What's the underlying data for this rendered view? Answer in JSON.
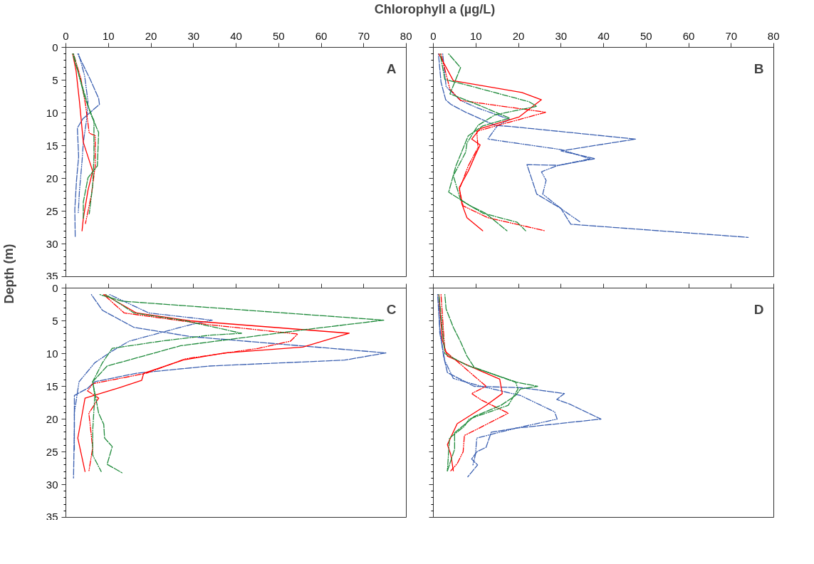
{
  "chart_data": [
    {
      "type": "line",
      "xlabel": "Chlorophyll a (µg/L)",
      "ylabel": "Depth (m)",
      "annotations": [
        "A"
      ],
      "xlim": [
        0,
        80
      ],
      "xticks": [
        0,
        10,
        20,
        30,
        40,
        50,
        60,
        70,
        80
      ],
      "ylim": [
        35,
        0
      ],
      "yticks": [
        0,
        5,
        10,
        15,
        20,
        25,
        30,
        35
      ],
      "series": [
        {
          "color": "#3a5fb0",
          "line_style": "dashed",
          "x": [
            2.8,
            5.8,
            7.7,
            7.9,
            4,
            2.7,
            3,
            2.5,
            2.1,
            2.2
          ],
          "values": [
            1,
            5,
            7.8,
            8.7,
            10.9,
            12.3,
            16.7,
            20.3,
            24.7,
            29
          ]
        },
        {
          "color": "#3a5fb0",
          "line_style": "dashdotdot",
          "x": [
            3,
            4.4,
            5.2,
            4.9,
            4.1,
            3.8,
            3.2,
            2.9
          ],
          "values": [
            1,
            4.3,
            8.3,
            10.9,
            14.5,
            17.4,
            21.8,
            25.4
          ]
        },
        {
          "color": "#ff0000",
          "line_style": "solid",
          "x": [
            1.6,
            2.4,
            3.2,
            4.1,
            6.3,
            5.2,
            4.1,
            3.8
          ],
          "values": [
            1,
            3.6,
            8.3,
            14.5,
            18.9,
            21.8,
            26.1,
            28
          ]
        },
        {
          "color": "#ff0000",
          "line_style": "dashdotdot",
          "x": [
            1.8,
            3.5,
            4.6,
            5.5,
            6.9,
            6.9,
            6,
            4.6
          ],
          "values": [
            1,
            4.7,
            8.7,
            13.1,
            13.5,
            18.1,
            22.5,
            26.9
          ]
        },
        {
          "color": "#1e8a3a",
          "line_style": "dashed",
          "x": [
            1.6,
            4.1,
            5.8,
            7.7,
            7.4,
            5.2,
            4.1,
            4.1
          ],
          "values": [
            1,
            6.5,
            10.1,
            13,
            18.1,
            19.9,
            23.6,
            26.1
          ]
        },
        {
          "color": "#1e8a3a",
          "line_style": "dashdot",
          "x": [
            1.8,
            4.4,
            6.6,
            6.6,
            6.3,
            5.5
          ],
          "values": [
            1,
            7.6,
            11.2,
            16.7,
            21.1,
            25.4
          ]
        }
      ]
    },
    {
      "type": "line",
      "annotations": [
        "B"
      ],
      "tick_labels": "x",
      "xlim": [
        0,
        80
      ],
      "xticks": [
        0,
        10,
        20,
        30,
        40,
        50,
        60,
        70,
        80
      ],
      "ylim": [
        35,
        0
      ],
      "yticks": [
        0,
        5,
        10,
        15,
        20,
        25,
        30,
        35
      ],
      "series": [
        {
          "color": "#3a5fb0",
          "line_style": "dashed",
          "x": [
            1.2,
            1.8,
            2.9,
            4.1,
            7.6,
            14.5,
            18.5,
            47.5,
            30,
            38,
            29.4,
            22,
            24.3,
            30,
            32.3,
            74
          ],
          "values": [
            1,
            5.3,
            8,
            8.7,
            9.9,
            11.9,
            12.1,
            14,
            15.8,
            17,
            18,
            17.9,
            22.4,
            24.6,
            27,
            29
          ]
        },
        {
          "color": "#3a5fb0",
          "line_style": "dashdotdot",
          "x": [
            2.2,
            3,
            6.4,
            10.2,
            17.9,
            15,
            12.8,
            30,
            36.9,
            28.9,
            25.4,
            26.5,
            25.7,
            30.6,
            34.6
          ],
          "values": [
            1,
            6,
            8.1,
            9.2,
            11,
            12,
            14,
            15.6,
            17,
            18.1,
            19,
            20.3,
            22.4,
            24.9,
            26.7
          ]
        },
        {
          "color": "#ff0000",
          "line_style": "solid",
          "x": [
            1.3,
            4.7,
            20.8,
            25.4,
            20.2,
            11,
            9,
            11,
            9.9,
            8.2,
            6.1,
            6.7,
            7.9,
            11.6
          ],
          "values": [
            1,
            5.1,
            6.9,
            8,
            10.6,
            12.4,
            14,
            14.9,
            16.4,
            18.9,
            21.4,
            23.9,
            26,
            28
          ]
        },
        {
          "color": "#ff0000",
          "line_style": "dashdotdot",
          "x": [
            1.8,
            3.9,
            6.4,
            20.8,
            26.5,
            17.4,
            10.2,
            10.5,
            8.2,
            6.1,
            7,
            12.8,
            26.3
          ],
          "values": [
            1,
            6.4,
            8.1,
            9.4,
            9.9,
            11.5,
            12.8,
            15.3,
            18.1,
            21.7,
            24.2,
            26,
            28
          ]
        },
        {
          "color": "#1e8a3a",
          "line_style": "dashed",
          "x": [
            3.6,
            6.4,
            3.9,
            11,
            17.9,
            11.6,
            8.2,
            5.3,
            3.6,
            8.7,
            12.2,
            17.3
          ],
          "values": [
            1,
            3.1,
            7.1,
            8.9,
            10.8,
            12,
            13.5,
            18.1,
            22.1,
            24.2,
            25.3,
            28
          ]
        },
        {
          "color": "#1e8a3a",
          "line_style": "dashdot",
          "x": [
            1.6,
            2.7,
            9.3,
            22.5,
            24.3,
            14.5,
            10.5,
            7.9,
            7.6,
            4.7,
            6.4,
            11.6,
            19.7,
            21.7
          ],
          "values": [
            1,
            4.9,
            6,
            8.3,
            9,
            10.3,
            11.9,
            14.6,
            16,
            19.6,
            23.3,
            25.3,
            26.7,
            28
          ]
        }
      ]
    },
    {
      "type": "line",
      "annotations": [
        "C"
      ],
      "tick_labels": "y",
      "xlim": [
        0,
        80
      ],
      "xticks": [
        0,
        10,
        20,
        30,
        40,
        50,
        60,
        70,
        80
      ],
      "ylim": [
        35,
        0
      ],
      "yticks": [
        0,
        5,
        10,
        15,
        20,
        25,
        30,
        35
      ],
      "series": [
        {
          "color": "#3a5fb0",
          "line_style": "dashed",
          "x": [
            6,
            8.6,
            16,
            29.2,
            75.2,
            65.5,
            33.8,
            16.6,
            6.8,
            5.1,
            2,
            2,
            1.8
          ],
          "values": [
            1,
            3.4,
            6,
            7.4,
            9.9,
            11,
            11.9,
            13,
            14.3,
            15.3,
            16.4,
            21,
            29
          ]
        },
        {
          "color": "#3a5fb0",
          "line_style": "dashdotdot",
          "x": [
            10.3,
            19.5,
            34.4,
            29.2,
            14.9,
            10.9,
            6.8,
            3.1,
            2,
            2
          ],
          "values": [
            1,
            3.8,
            4.9,
            5.6,
            8.1,
            9.6,
            11.4,
            14.3,
            19,
            24.7
          ]
        },
        {
          "color": "#ff0000",
          "line_style": "solid",
          "x": [
            9.1,
            16.6,
            29.2,
            66.6,
            55.7,
            37.3,
            27.5,
            18.3,
            17.8,
            12.6,
            4.5,
            3.7,
            2.8,
            4.5
          ],
          "values": [
            1,
            3.8,
            5,
            6.9,
            9,
            9.9,
            11,
            13,
            14.1,
            15.2,
            16.8,
            19.7,
            22.9,
            28
          ]
        },
        {
          "color": "#ff0000",
          "line_style": "dashdotdot",
          "x": [
            8.9,
            13.7,
            33.8,
            52.8,
            54.5,
            52.8,
            45.3,
            28.1,
            18.9,
            6.3,
            5.1,
            7.7,
            5.4,
            6.3,
            5.4
          ],
          "values": [
            1,
            3.8,
            5.6,
            6.9,
            7,
            8.1,
            9.2,
            10.8,
            13,
            14.6,
            15.7,
            16.8,
            19.1,
            24.4,
            28
          ]
        },
        {
          "color": "#1e8a3a",
          "line_style": "dashed",
          "x": [
            8,
            13.2,
            74.7,
            56.8,
            27,
            9.7,
            6.3,
            7.7,
            8.9,
            9.1,
            10.9,
            9.7,
            13.2
          ],
          "values": [
            1,
            2,
            4.9,
            6.3,
            8.8,
            11.9,
            14.3,
            19.1,
            20.8,
            22.9,
            24.2,
            26.9,
            28.2
          ]
        },
        {
          "color": "#1e8a3a",
          "line_style": "dashdot",
          "x": [
            9.4,
            16,
            28.1,
            41.3,
            33.8,
            22.4,
            10.9,
            8.6,
            6.3,
            6.8,
            6.3,
            6.3,
            8.3
          ],
          "values": [
            1,
            3.8,
            5,
            6.9,
            7.2,
            8.1,
            9.2,
            11.4,
            14.3,
            16.4,
            21.8,
            25.5,
            28
          ]
        }
      ]
    },
    {
      "type": "line",
      "annotations": [
        "D"
      ],
      "tick_labels": false,
      "xlim": [
        0,
        80
      ],
      "xticks": [
        0,
        10,
        20,
        30,
        40,
        50,
        60,
        70,
        80
      ],
      "ylim": [
        35,
        0
      ],
      "yticks": [
        0,
        5,
        10,
        15,
        20,
        25,
        30,
        35
      ],
      "series": [
        {
          "color": "#3a5fb0",
          "line_style": "dashed",
          "x": [
            1,
            1.5,
            2.4,
            3.3,
            9.6,
            20.5,
            30.8,
            29,
            32,
            39.4,
            19.3,
            13.6,
            12.4,
            10.2,
            9,
            10.4,
            8.1
          ],
          "values": [
            1,
            6,
            10.4,
            12.9,
            15,
            15.2,
            16.1,
            17,
            17.7,
            20,
            21.4,
            22,
            24.3,
            25,
            26.1,
            27,
            28.8
          ]
        },
        {
          "color": "#3a5fb0",
          "line_style": "dashdotdot",
          "x": [
            1.3,
            1.5,
            2.7,
            4.7,
            11.3,
            20.5,
            28.5,
            29.1,
            19.3,
            10.2,
            9.9,
            9.3
          ],
          "values": [
            1,
            6.8,
            11.1,
            13.8,
            15,
            16.4,
            18.9,
            20,
            21.4,
            22.9,
            25.4,
            27
          ]
        },
        {
          "color": "#ff0000",
          "line_style": "solid",
          "x": [
            1.3,
            2.1,
            3.3,
            11.3,
            15.6,
            16.2,
            12.4,
            5.6,
            3.3,
            4.1,
            4.7
          ],
          "values": [
            1,
            7.9,
            10.4,
            12.7,
            13.9,
            16.1,
            17.9,
            20.7,
            23.9,
            25.4,
            27.9
          ]
        },
        {
          "color": "#ff0000",
          "line_style": "dashdotdot",
          "x": [
            1.8,
            2.7,
            6.7,
            12.4,
            9,
            11.3,
            17.6,
            10.7,
            7.3,
            7,
            5.6,
            4.1
          ],
          "values": [
            1,
            9.6,
            11.8,
            15,
            16.1,
            17.1,
            19.1,
            21.4,
            22.5,
            25,
            26.8,
            27.9
          ]
        },
        {
          "color": "#1e8a3a",
          "line_style": "dashed",
          "x": [
            2.7,
            3,
            4.7,
            6.4,
            7.9,
            9.6,
            19,
            24.5,
            20.5,
            19.3,
            15.9,
            9.6,
            5,
            5,
            3.3
          ],
          "values": [
            1,
            3.2,
            6,
            8.2,
            10.4,
            12.1,
            14.3,
            15,
            15.4,
            16.4,
            17.9,
            19.6,
            22.1,
            24.6,
            27.9
          ]
        },
        {
          "color": "#1e8a3a",
          "line_style": "dashdot",
          "x": [
            1.3,
            2.7,
            7.9,
            19.3,
            19.9,
            17.6,
            8.4,
            7.3,
            3.8,
            3.3
          ],
          "values": [
            1,
            10,
            11.8,
            14.3,
            15.4,
            17.9,
            20,
            21.1,
            22.9,
            27.9
          ]
        }
      ]
    }
  ]
}
